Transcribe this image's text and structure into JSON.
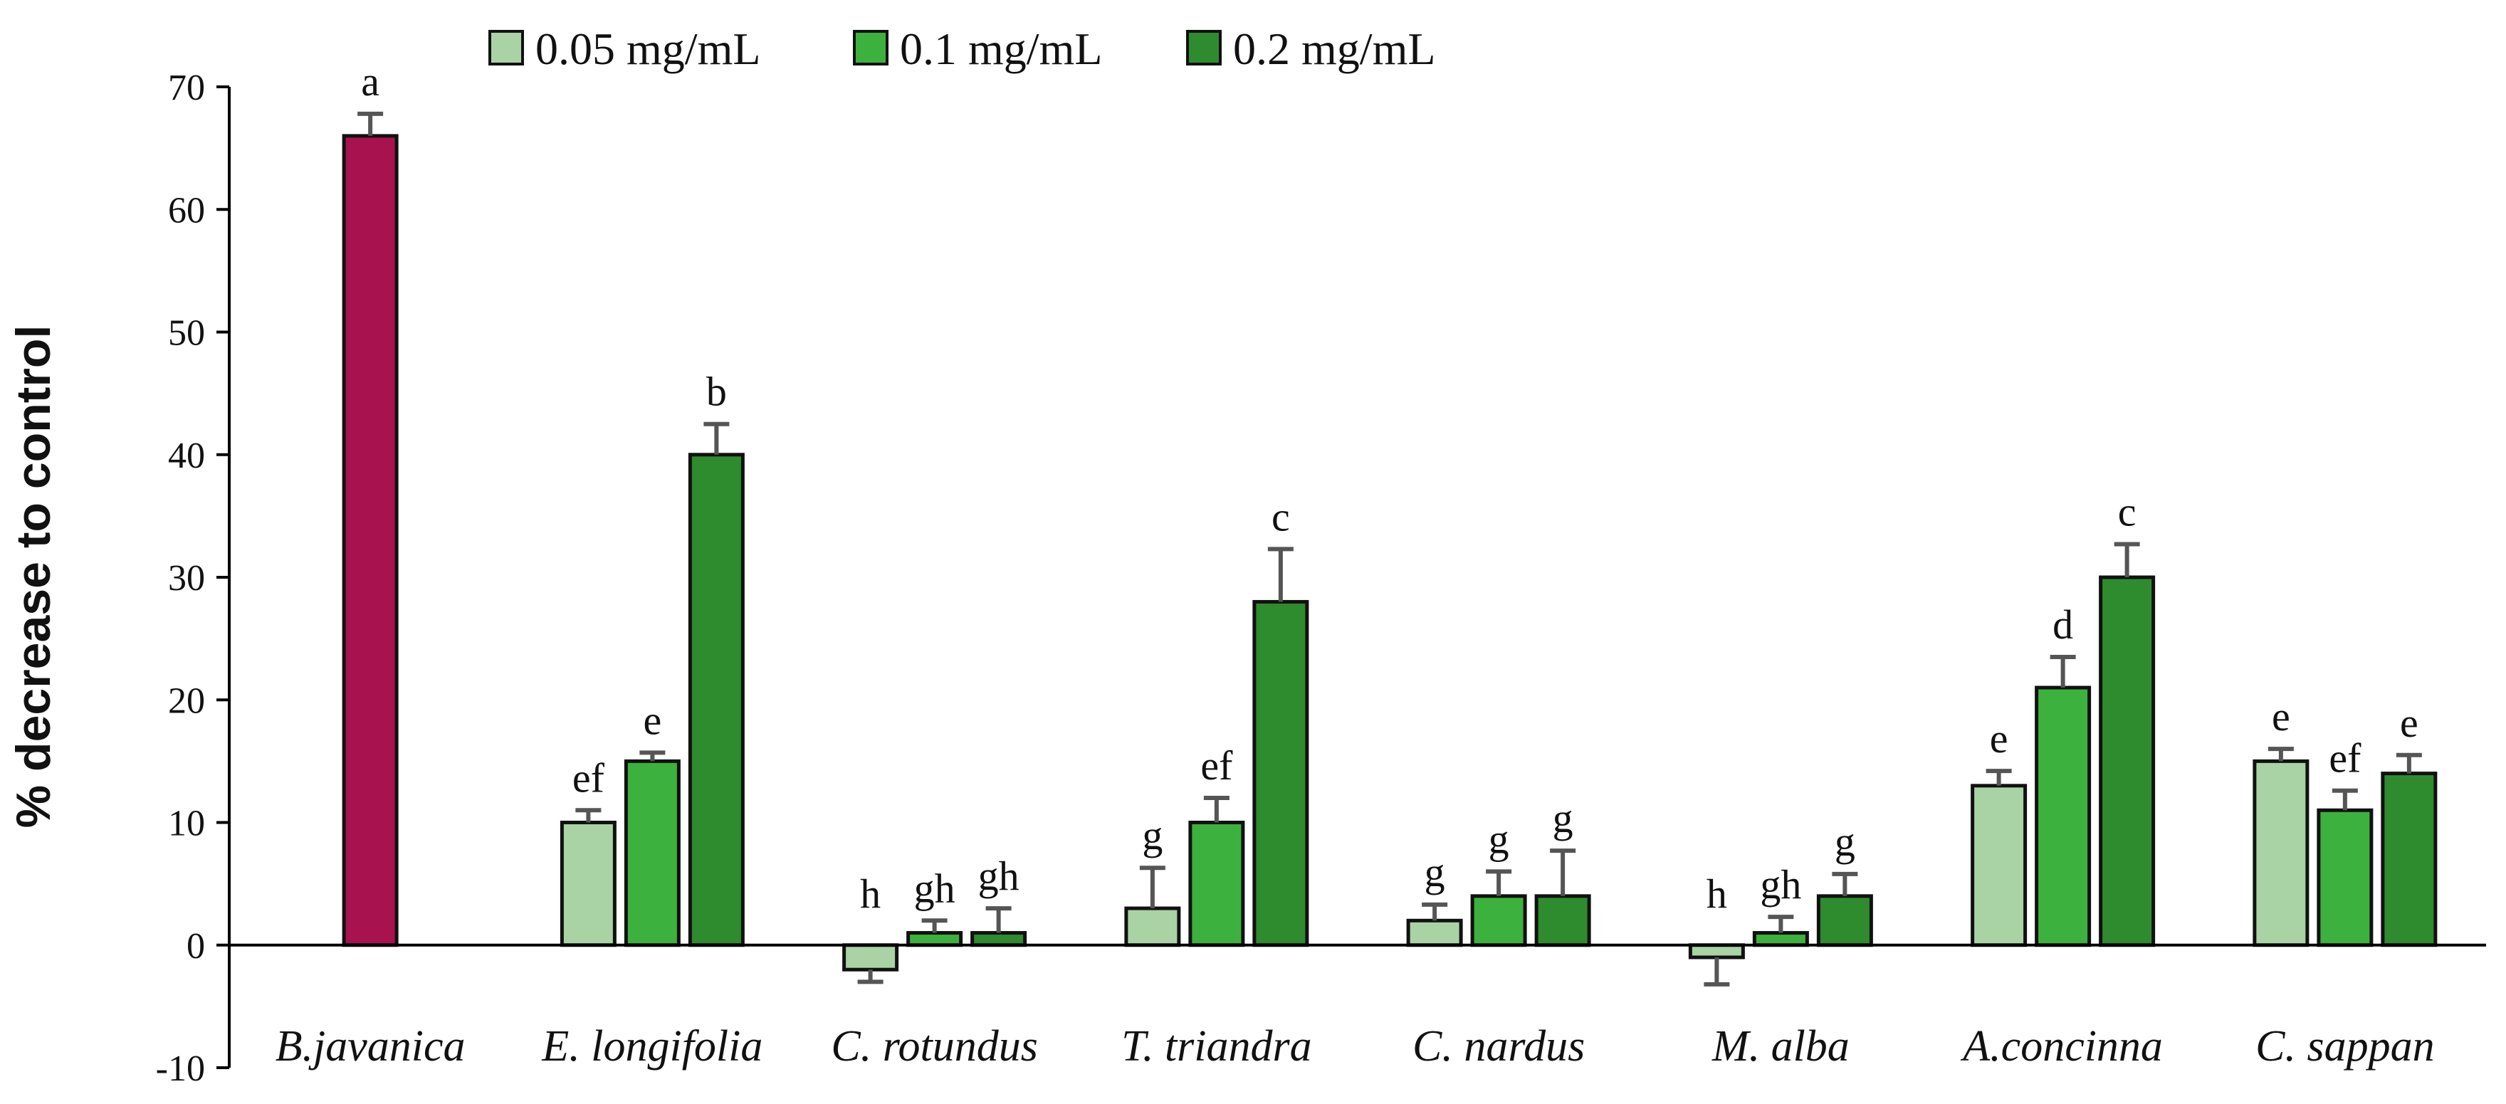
{
  "chart_data": {
    "type": "bar",
    "title": "",
    "xlabel": "",
    "ylabel": "% decrease to control",
    "ylim": [
      -10,
      70
    ],
    "yticks": [
      -10,
      0,
      10,
      20,
      30,
      40,
      50,
      60,
      70
    ],
    "grid": false,
    "legend_position": "top-center",
    "colors": {
      "reference": "#a8124e",
      "0.05 mg/mL": "#a9d3a4",
      "0.1 mg/mL": "#3db13d",
      "0.2 mg/mL": "#2e8b2e",
      "axis": "#000000",
      "error_bar": "#555555"
    },
    "series": [
      {
        "name": "0.05 mg/mL"
      },
      {
        "name": "0.1 mg/mL"
      },
      {
        "name": "0.2 mg/mL"
      }
    ],
    "categories": [
      {
        "name": "B.javanica",
        "bars": [
          {
            "series": "reference",
            "value": 66,
            "error": 1.8,
            "sig": "a"
          }
        ]
      },
      {
        "name": "E. longifolia",
        "bars": [
          {
            "series": "0.05 mg/mL",
            "value": 10,
            "error": 1.0,
            "sig": "ef"
          },
          {
            "series": "0.1 mg/mL",
            "value": 15,
            "error": 0.7,
            "sig": "e"
          },
          {
            "series": "0.2 mg/mL",
            "value": 40,
            "error": 2.5,
            "sig": "b"
          }
        ]
      },
      {
        "name": "C. rotundus",
        "bars": [
          {
            "series": "0.05 mg/mL",
            "value": -2,
            "error": 1.0,
            "sig": "h"
          },
          {
            "series": "0.1 mg/mL",
            "value": 1,
            "error": 1.0,
            "sig": "gh"
          },
          {
            "series": "0.2 mg/mL",
            "value": 1,
            "error": 2.0,
            "sig": "gh"
          }
        ]
      },
      {
        "name": "T. triandra",
        "bars": [
          {
            "series": "0.05 mg/mL",
            "value": 3,
            "error": 3.3,
            "sig": "g"
          },
          {
            "series": "0.1 mg/mL",
            "value": 10,
            "error": 2.0,
            "sig": "ef"
          },
          {
            "series": "0.2 mg/mL",
            "value": 28,
            "error": 4.3,
            "sig": "c"
          }
        ]
      },
      {
        "name": "C. nardus",
        "bars": [
          {
            "series": "0.05 mg/mL",
            "value": 2,
            "error": 1.3,
            "sig": "g"
          },
          {
            "series": "0.1 mg/mL",
            "value": 4,
            "error": 2.0,
            "sig": "g"
          },
          {
            "series": "0.2 mg/mL",
            "value": 4,
            "error": 3.7,
            "sig": "g"
          }
        ]
      },
      {
        "name": "M. alba",
        "bars": [
          {
            "series": "0.05 mg/mL",
            "value": -1,
            "error": 2.2,
            "sig": "h"
          },
          {
            "series": "0.1 mg/mL",
            "value": 1,
            "error": 1.3,
            "sig": "gh"
          },
          {
            "series": "0.2 mg/mL",
            "value": 4,
            "error": 1.8,
            "sig": "g"
          }
        ]
      },
      {
        "name": "A.concinna",
        "bars": [
          {
            "series": "0.05 mg/mL",
            "value": 13,
            "error": 1.2,
            "sig": "e"
          },
          {
            "series": "0.1 mg/mL",
            "value": 21,
            "error": 2.5,
            "sig": "d"
          },
          {
            "series": "0.2 mg/mL",
            "value": 30,
            "error": 2.7,
            "sig": "c"
          }
        ]
      },
      {
        "name": "C. sappan",
        "bars": [
          {
            "series": "0.05 mg/mL",
            "value": 15,
            "error": 1.0,
            "sig": "e"
          },
          {
            "series": "0.1 mg/mL",
            "value": 11,
            "error": 1.6,
            "sig": "ef"
          },
          {
            "series": "0.2 mg/mL",
            "value": 14,
            "error": 1.5,
            "sig": "e"
          }
        ]
      }
    ]
  }
}
